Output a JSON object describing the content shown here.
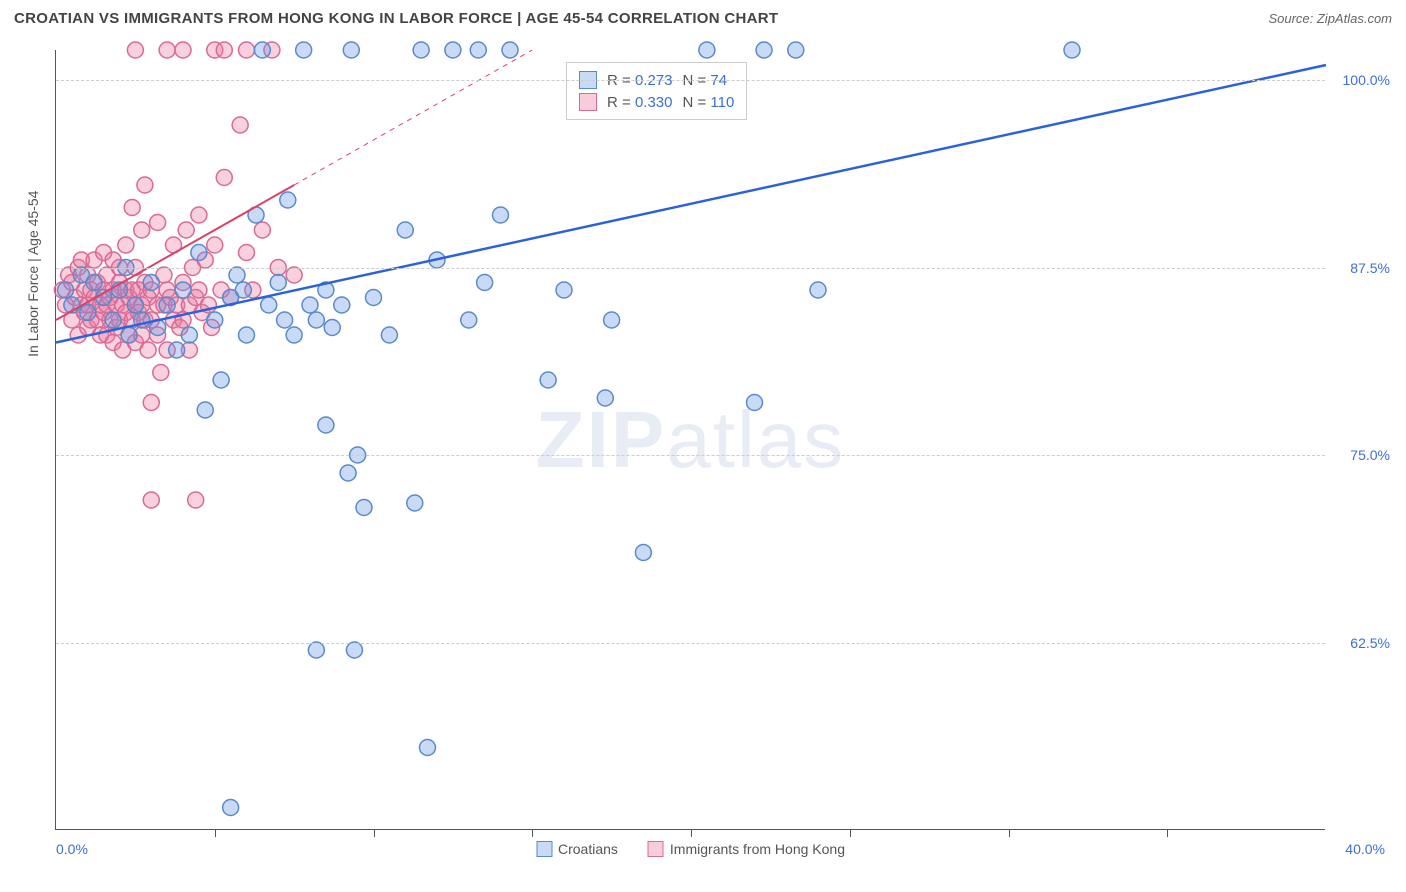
{
  "title": "CROATIAN VS IMMIGRANTS FROM HONG KONG IN LABOR FORCE | AGE 45-54 CORRELATION CHART",
  "source": "Source: ZipAtlas.com",
  "y_axis_title": "In Labor Force | Age 45-54",
  "watermark_a": "ZIP",
  "watermark_b": "atlas",
  "chart": {
    "type": "scatter",
    "xlim": [
      0,
      40
    ],
    "ylim": [
      50,
      102
    ],
    "x_min_label": "0.0%",
    "x_max_label": "40.0%",
    "x_ticks": [
      5,
      10,
      15,
      20,
      25,
      30,
      35
    ],
    "y_ticks": [
      {
        "v": 62.5,
        "label": "62.5%"
      },
      {
        "v": 75.0,
        "label": "75.0%"
      },
      {
        "v": 87.5,
        "label": "87.5%"
      },
      {
        "v": 100.0,
        "label": "100.0%"
      }
    ],
    "grid_color": "#cccccc",
    "axis_color": "#555555",
    "tick_label_color": "#3b6fd6",
    "marker_radius": 8,
    "marker_stroke_width": 1.5,
    "series": [
      {
        "name": "Croatians",
        "color_fill": "rgba(100,150,230,0.35)",
        "color_stroke": "#5a8acb",
        "swatch_fill": "#c7dbf5",
        "swatch_border": "#5a8acb",
        "R": "0.273",
        "N": "74",
        "trend": {
          "x1": 0,
          "y1": 82.5,
          "x2": 40,
          "y2": 101,
          "stroke": "#2b62d9",
          "width": 2.5,
          "solid_until_x": 40
        },
        "points": [
          [
            0.3,
            86
          ],
          [
            0.5,
            85
          ],
          [
            0.8,
            87
          ],
          [
            1.0,
            84.5
          ],
          [
            1.2,
            86.5
          ],
          [
            1.5,
            85.5
          ],
          [
            1.8,
            84
          ],
          [
            2.0,
            86
          ],
          [
            2.2,
            87.5
          ],
          [
            2.3,
            83
          ],
          [
            2.5,
            85
          ],
          [
            2.7,
            84
          ],
          [
            3.0,
            86.5
          ],
          [
            3.2,
            83.5
          ],
          [
            3.5,
            85
          ],
          [
            3.8,
            82
          ],
          [
            4.0,
            86
          ],
          [
            4.2,
            83
          ],
          [
            4.5,
            88.5
          ],
          [
            4.7,
            78
          ],
          [
            5.0,
            84
          ],
          [
            5.2,
            80
          ],
          [
            5.5,
            85.5
          ],
          [
            5.7,
            87
          ],
          [
            5.9,
            86
          ],
          [
            5.5,
            51.5
          ],
          [
            6.0,
            83
          ],
          [
            6.3,
            91
          ],
          [
            6.5,
            102
          ],
          [
            6.7,
            85
          ],
          [
            7.0,
            86.5
          ],
          [
            7.2,
            84
          ],
          [
            7.3,
            92
          ],
          [
            7.5,
            83
          ],
          [
            7.8,
            102
          ],
          [
            8.0,
            85
          ],
          [
            8.2,
            84
          ],
          [
            8.5,
            77
          ],
          [
            8.5,
            86
          ],
          [
            8.7,
            83.5
          ],
          [
            8.2,
            62
          ],
          [
            9.0,
            85
          ],
          [
            9.2,
            73.8
          ],
          [
            9.3,
            102
          ],
          [
            9.4,
            62
          ],
          [
            9.5,
            75
          ],
          [
            9.7,
            71.5
          ],
          [
            10.0,
            85.5
          ],
          [
            10.5,
            83
          ],
          [
            11.0,
            90
          ],
          [
            11.3,
            71.8
          ],
          [
            11.5,
            102
          ],
          [
            11.7,
            55.5
          ],
          [
            12.0,
            88
          ],
          [
            12.5,
            102
          ],
          [
            13.0,
            84
          ],
          [
            13.3,
            102
          ],
          [
            13.5,
            86.5
          ],
          [
            14.0,
            91
          ],
          [
            14.3,
            102
          ],
          [
            15.5,
            80
          ],
          [
            16.0,
            86
          ],
          [
            17.3,
            78.8
          ],
          [
            17.5,
            84
          ],
          [
            18.5,
            68.5
          ],
          [
            20.5,
            102
          ],
          [
            22.0,
            78.5
          ],
          [
            22.3,
            102
          ],
          [
            23.3,
            102
          ],
          [
            24.0,
            86
          ],
          [
            32.0,
            102
          ]
        ]
      },
      {
        "name": "Immigrants from Hong Kong",
        "color_fill": "rgba(235,120,160,0.35)",
        "color_stroke": "#d96a94",
        "swatch_fill": "#f7cddc",
        "swatch_border": "#d96a94",
        "R": "0.330",
        "N": "110",
        "trend": {
          "x1": 0,
          "y1": 84,
          "x2": 15,
          "y2": 102,
          "stroke": "#d94368",
          "width": 2,
          "solid_until_x": 7.5
        },
        "points": [
          [
            0.2,
            86
          ],
          [
            0.3,
            85
          ],
          [
            0.4,
            87
          ],
          [
            0.5,
            84
          ],
          [
            0.5,
            86.5
          ],
          [
            0.6,
            85.5
          ],
          [
            0.7,
            87.5
          ],
          [
            0.7,
            83
          ],
          [
            0.8,
            85
          ],
          [
            0.8,
            88
          ],
          [
            0.9,
            84.5
          ],
          [
            0.9,
            86
          ],
          [
            1.0,
            85
          ],
          [
            1.0,
            87
          ],
          [
            1.0,
            83.5
          ],
          [
            1.1,
            86
          ],
          [
            1.1,
            84
          ],
          [
            1.2,
            85.5
          ],
          [
            1.2,
            88
          ],
          [
            1.3,
            84
          ],
          [
            1.3,
            86.5
          ],
          [
            1.4,
            85
          ],
          [
            1.4,
            83
          ],
          [
            1.5,
            86
          ],
          [
            1.5,
            84.5
          ],
          [
            1.5,
            88.5
          ],
          [
            1.6,
            85
          ],
          [
            1.6,
            83
          ],
          [
            1.6,
            87
          ],
          [
            1.7,
            85.5
          ],
          [
            1.7,
            84
          ],
          [
            1.8,
            86
          ],
          [
            1.8,
            82.5
          ],
          [
            1.8,
            88
          ],
          [
            1.9,
            85
          ],
          [
            1.9,
            83.5
          ],
          [
            2.0,
            86.5
          ],
          [
            2.0,
            84
          ],
          [
            2.0,
            87.5
          ],
          [
            2.1,
            85
          ],
          [
            2.1,
            82
          ],
          [
            2.2,
            86
          ],
          [
            2.2,
            84.5
          ],
          [
            2.2,
            89
          ],
          [
            2.3,
            85.5
          ],
          [
            2.3,
            83
          ],
          [
            2.4,
            86
          ],
          [
            2.4,
            84
          ],
          [
            2.4,
            91.5
          ],
          [
            2.5,
            85
          ],
          [
            2.5,
            82.5
          ],
          [
            2.5,
            87.5
          ],
          [
            2.5,
            102
          ],
          [
            2.6,
            84.5
          ],
          [
            2.6,
            86
          ],
          [
            2.7,
            85
          ],
          [
            2.7,
            83
          ],
          [
            2.7,
            90
          ],
          [
            2.8,
            84
          ],
          [
            2.8,
            86.5
          ],
          [
            2.8,
            93
          ],
          [
            2.9,
            85.5
          ],
          [
            2.9,
            82
          ],
          [
            3.0,
            86
          ],
          [
            3.0,
            78.5
          ],
          [
            3.0,
            72
          ],
          [
            3.0,
            84
          ],
          [
            3.2,
            85
          ],
          [
            3.2,
            90.5
          ],
          [
            3.2,
            83
          ],
          [
            3.3,
            80.5
          ],
          [
            3.4,
            87
          ],
          [
            3.4,
            85
          ],
          [
            3.5,
            86
          ],
          [
            3.5,
            82
          ],
          [
            3.5,
            102
          ],
          [
            3.6,
            85.5
          ],
          [
            3.7,
            84
          ],
          [
            3.7,
            89
          ],
          [
            3.8,
            85
          ],
          [
            3.9,
            83.5
          ],
          [
            4.0,
            86.5
          ],
          [
            4.0,
            84
          ],
          [
            4.0,
            102
          ],
          [
            4.1,
            90
          ],
          [
            4.2,
            85
          ],
          [
            4.2,
            82
          ],
          [
            4.3,
            87.5
          ],
          [
            4.4,
            85.5
          ],
          [
            4.4,
            72
          ],
          [
            4.5,
            91
          ],
          [
            4.5,
            86
          ],
          [
            4.6,
            84.5
          ],
          [
            4.7,
            88
          ],
          [
            4.8,
            85
          ],
          [
            4.9,
            83.5
          ],
          [
            5.0,
            89
          ],
          [
            5.0,
            102
          ],
          [
            5.2,
            86
          ],
          [
            5.3,
            93.5
          ],
          [
            5.3,
            102
          ],
          [
            5.5,
            85.5
          ],
          [
            5.8,
            97
          ],
          [
            6.0,
            88.5
          ],
          [
            6.0,
            102
          ],
          [
            6.2,
            86
          ],
          [
            6.5,
            90
          ],
          [
            6.8,
            102
          ],
          [
            7.0,
            87.5
          ],
          [
            7.5,
            87
          ]
        ]
      }
    ]
  },
  "stats_legend": {
    "r_label": "R =",
    "n_label": "N ="
  }
}
